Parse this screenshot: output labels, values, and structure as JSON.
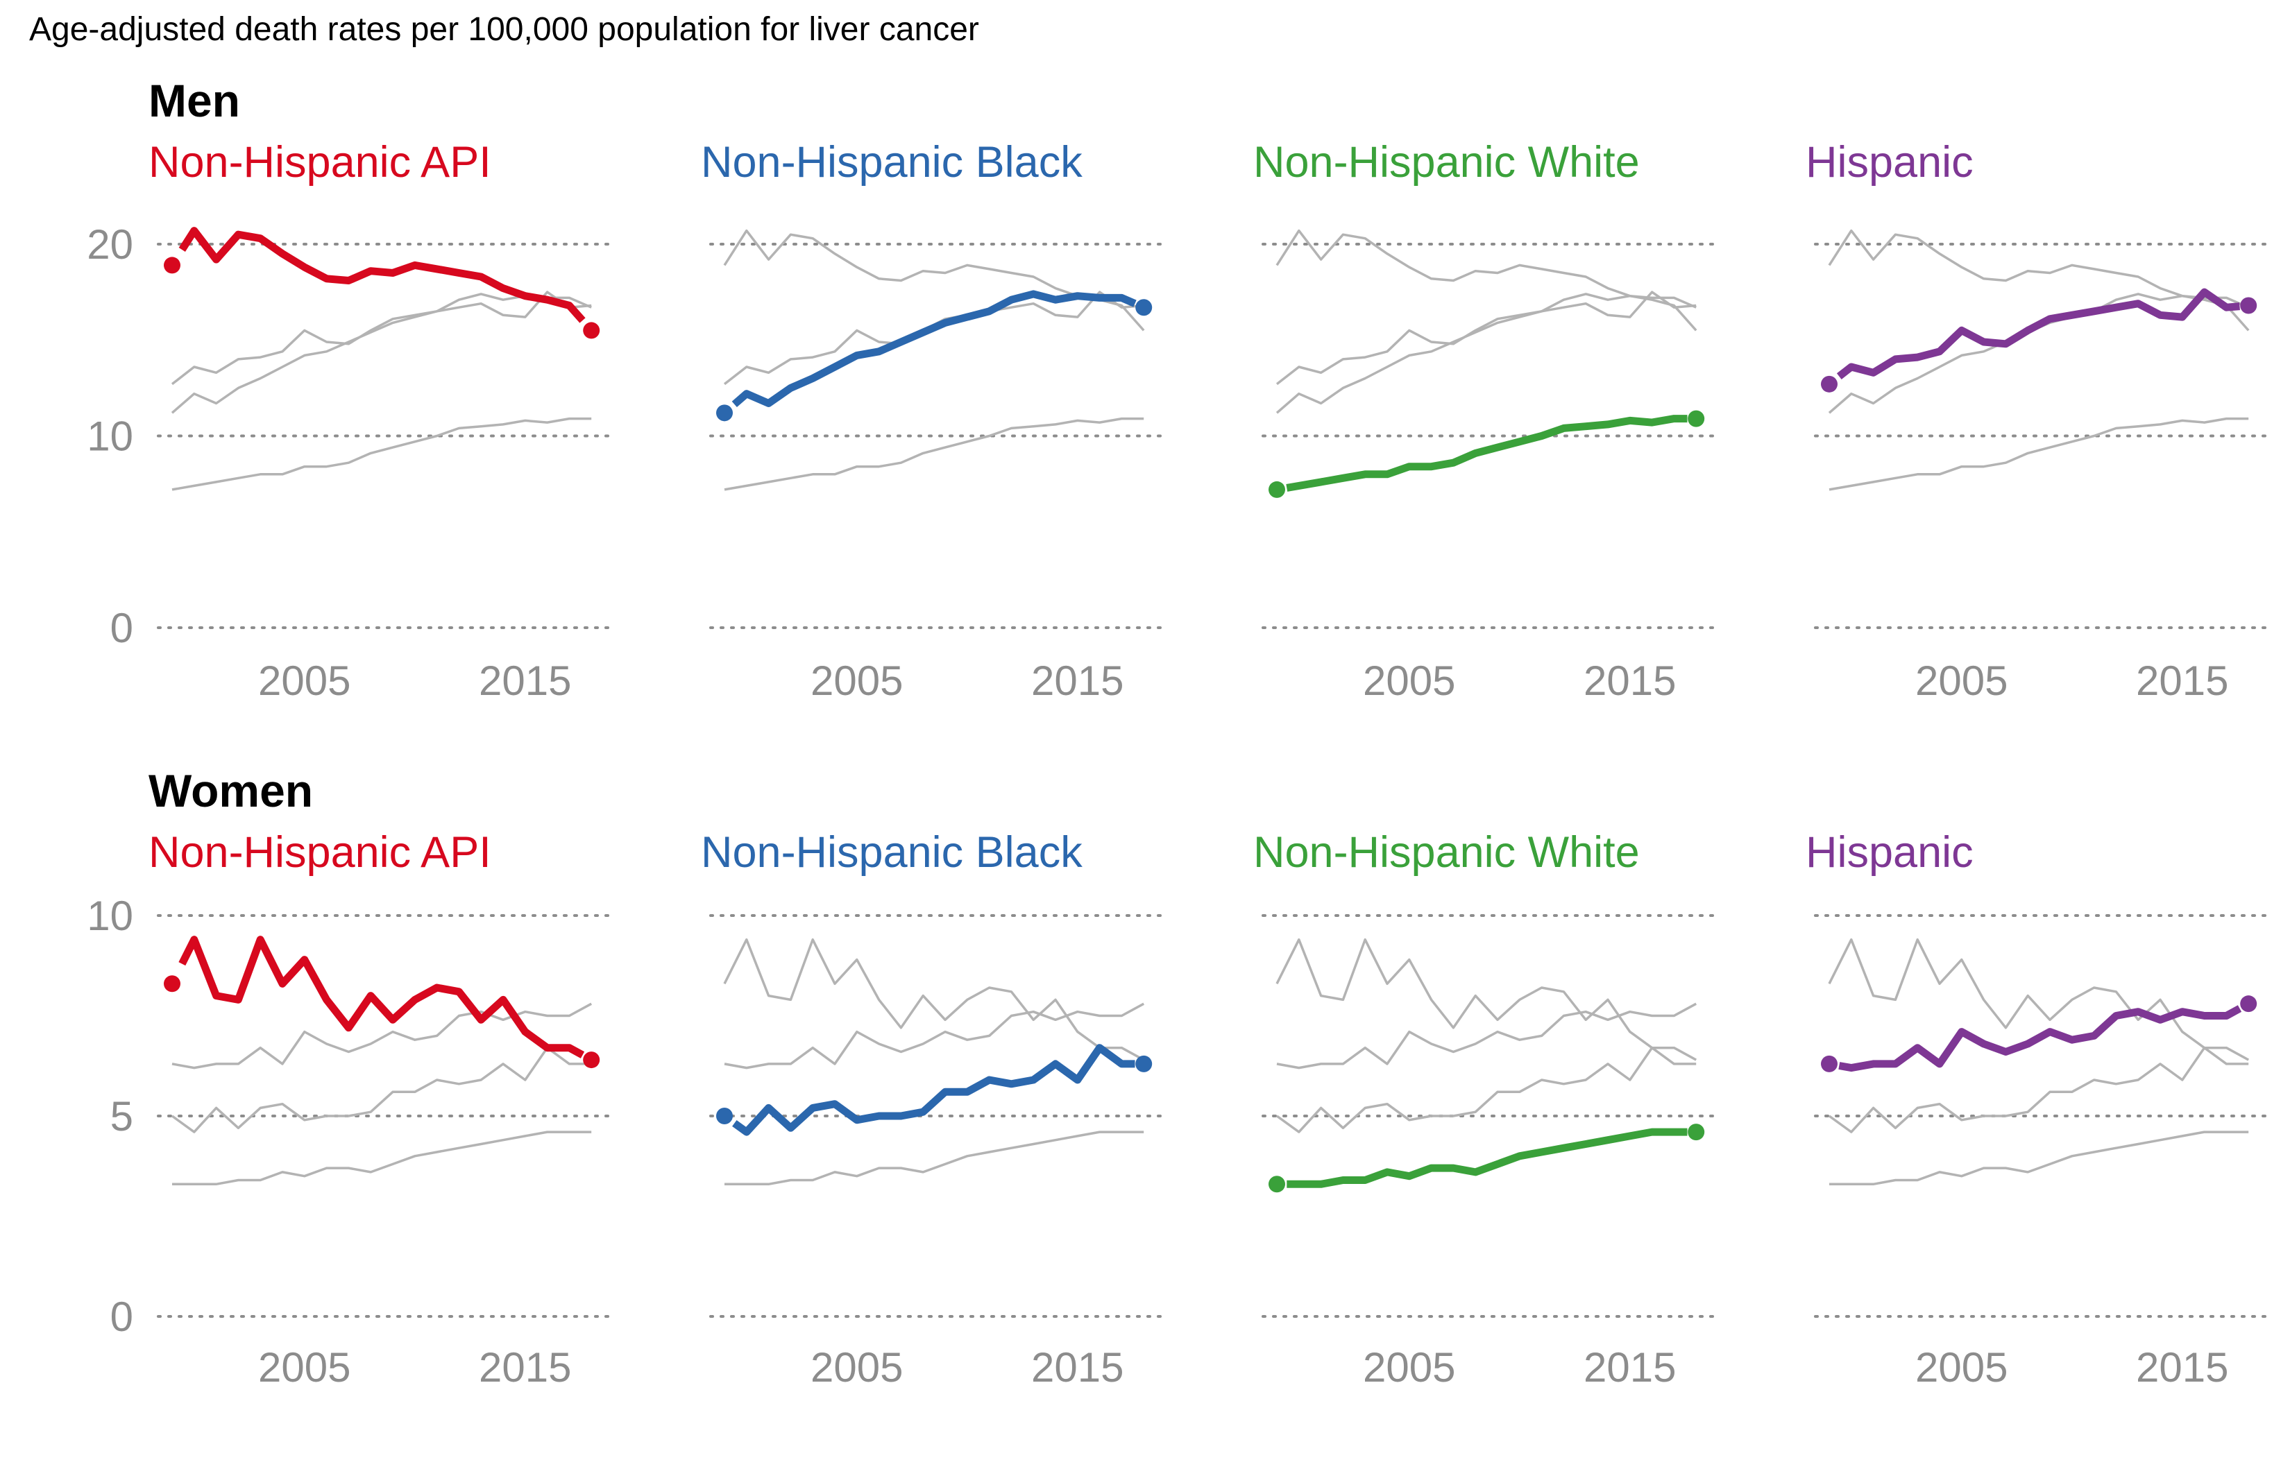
{
  "title": "Age-adjusted death rates per 100,000 population for liver cancer",
  "colors": {
    "Non-Hispanic API": "#d7081e",
    "Non-Hispanic Black": "#2b67ad",
    "Non-Hispanic White": "#3aa13a",
    "Hispanic": "#7e3794",
    "context": "#b3b3b3",
    "axis_text": "#8c8c8c"
  },
  "chart_data": [
    {
      "type": "line",
      "title": "Men",
      "x_tick_labels": [
        "2005",
        "2015"
      ],
      "y_ticks": [
        0,
        10,
        20
      ],
      "ylim": [
        0,
        20
      ],
      "xlim": [
        1999,
        2018
      ],
      "grid": "horizontal dotted",
      "x": [
        1999,
        2000,
        2001,
        2002,
        2003,
        2004,
        2005,
        2006,
        2007,
        2008,
        2009,
        2010,
        2011,
        2012,
        2013,
        2014,
        2015,
        2016,
        2017,
        2018
      ],
      "series": [
        {
          "name": "Non-Hispanic API",
          "values": [
            18.9,
            20.7,
            19.2,
            20.5,
            20.3,
            19.5,
            18.8,
            18.2,
            18.1,
            18.6,
            18.5,
            18.9,
            18.7,
            18.5,
            18.3,
            17.7,
            17.3,
            17.1,
            16.8,
            15.5
          ]
        },
        {
          "name": "Non-Hispanic Black",
          "values": [
            11.2,
            12.2,
            11.7,
            12.5,
            13.0,
            13.6,
            14.2,
            14.4,
            14.9,
            15.4,
            15.9,
            16.2,
            16.5,
            17.1,
            17.4,
            17.1,
            17.3,
            17.2,
            17.2,
            16.7
          ]
        },
        {
          "name": "Non-Hispanic White",
          "values": [
            7.2,
            7.4,
            7.6,
            7.8,
            8.0,
            8.0,
            8.4,
            8.4,
            8.6,
            9.1,
            9.4,
            9.7,
            10.0,
            10.4,
            10.5,
            10.6,
            10.8,
            10.7,
            10.9,
            10.9
          ]
        },
        {
          "name": "Hispanic",
          "values": [
            12.7,
            13.6,
            13.3,
            14.0,
            14.1,
            14.4,
            15.5,
            14.9,
            14.8,
            15.5,
            16.1,
            16.3,
            16.5,
            16.7,
            16.9,
            16.3,
            16.2,
            17.5,
            16.7,
            16.8
          ]
        }
      ]
    },
    {
      "type": "line",
      "title": "Women",
      "x_tick_labels": [
        "2005",
        "2015"
      ],
      "y_ticks": [
        0,
        5,
        10
      ],
      "ylim": [
        0,
        10
      ],
      "xlim": [
        1999,
        2018
      ],
      "grid": "horizontal dotted",
      "x": [
        1999,
        2000,
        2001,
        2002,
        2003,
        2004,
        2005,
        2006,
        2007,
        2008,
        2009,
        2010,
        2011,
        2012,
        2013,
        2014,
        2015,
        2016,
        2017,
        2018
      ],
      "series": [
        {
          "name": "Non-Hispanic API",
          "values": [
            8.3,
            9.4,
            8.0,
            7.9,
            9.4,
            8.3,
            8.9,
            7.9,
            7.2,
            8.0,
            7.4,
            7.9,
            8.2,
            8.1,
            7.4,
            7.9,
            7.1,
            6.7,
            6.7,
            6.4
          ]
        },
        {
          "name": "Non-Hispanic Black",
          "values": [
            5.0,
            4.6,
            5.2,
            4.7,
            5.2,
            5.3,
            4.9,
            5.0,
            5.0,
            5.1,
            5.6,
            5.6,
            5.9,
            5.8,
            5.9,
            6.3,
            5.9,
            6.7,
            6.3,
            6.3
          ]
        },
        {
          "name": "Non-Hispanic White",
          "values": [
            3.3,
            3.3,
            3.3,
            3.4,
            3.4,
            3.6,
            3.5,
            3.7,
            3.7,
            3.6,
            3.8,
            4.0,
            4.1,
            4.2,
            4.3,
            4.4,
            4.5,
            4.6,
            4.6,
            4.6
          ]
        },
        {
          "name": "Hispanic",
          "values": [
            6.3,
            6.2,
            6.3,
            6.3,
            6.7,
            6.3,
            7.1,
            6.8,
            6.6,
            6.8,
            7.1,
            6.9,
            7.0,
            7.5,
            7.6,
            7.4,
            7.6,
            7.5,
            7.5,
            7.8
          ]
        }
      ]
    }
  ]
}
